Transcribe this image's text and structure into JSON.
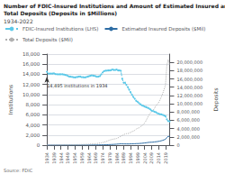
{
  "chart_data": {
    "type": "line",
    "title": "Number of FDIC-Insured Institutions and Amount of Estimated Insured and\nTotal Deposits (Deposits in $Millions)",
    "subtitle": "1934-2022",
    "source": "Source: FDIC",
    "ylabel": "Institutions",
    "y2label": "Deposits",
    "annotations": [
      {
        "text": "14,495 institutions in 1934",
        "x": 1934,
        "y": 14495
      }
    ],
    "legend": "upper left",
    "grid": true,
    "x": [
      1934,
      1935,
      1936,
      1937,
      1938,
      1939,
      1940,
      1941,
      1942,
      1943,
      1944,
      1945,
      1946,
      1947,
      1948,
      1949,
      1950,
      1951,
      1952,
      1953,
      1954,
      1955,
      1956,
      1957,
      1958,
      1959,
      1960,
      1961,
      1962,
      1963,
      1964,
      1965,
      1966,
      1967,
      1968,
      1969,
      1970,
      1971,
      1972,
      1973,
      1974,
      1975,
      1976,
      1977,
      1978,
      1979,
      1980,
      1981,
      1982,
      1983,
      1984,
      1985,
      1986,
      1987,
      1988,
      1989,
      1990,
      1991,
      1992,
      1993,
      1994,
      1995,
      1996,
      1997,
      1998,
      1999,
      2000,
      2001,
      2002,
      2003,
      2004,
      2005,
      2006,
      2007,
      2008,
      2009,
      2010,
      2011,
      2012,
      2013,
      2014,
      2015,
      2016,
      2017,
      2018,
      2019,
      2020,
      2021,
      2022
    ],
    "xlim": [
      1934,
      2022
    ],
    "xticks": [
      1934,
      1939,
      1944,
      1949,
      1954,
      1959,
      1964,
      1969,
      1974,
      1979,
      1984,
      1989,
      1994,
      1999,
      2004,
      2009,
      2014,
      2019
    ],
    "ylim": [
      0,
      18000
    ],
    "yticks": [
      0,
      {
        "value": 2000,
        "label": "2,000"
      },
      {
        "value": 4000,
        "label": "4,000"
      },
      {
        "value": 6000,
        "label": "6,000"
      },
      {
        "value": 8000,
        "label": "8,000"
      },
      {
        "value": 10000,
        "label": "10,000"
      },
      {
        "value": 12000,
        "label": "12,000"
      },
      {
        "value": 14000,
        "label": "14,000"
      },
      {
        "value": 16000,
        "label": "16,000"
      },
      {
        "value": 18000,
        "label": "18,000"
      }
    ],
    "y2lim": [
      0,
      22000000
    ],
    "y2ticks": [
      0,
      {
        "value": 2000000,
        "label": "2,000,000"
      },
      {
        "value": 4000000,
        "label": "4,000,000"
      },
      {
        "value": 6000000,
        "label": "6,000,000"
      },
      {
        "value": 8000000,
        "label": "8,000,000"
      },
      {
        "value": 10000000,
        "label": "10,000,000"
      },
      {
        "value": 12000000,
        "label": "12,000,000"
      },
      {
        "value": 14000000,
        "label": "14,000,000"
      },
      {
        "value": 16000000,
        "label": "16,000,000"
      },
      {
        "value": 18000000,
        "label": "18,000,000"
      },
      {
        "value": 20000000,
        "label": "20,000,000"
      }
    ],
    "series": [
      {
        "name": "FDIC-Insured Institutions (LHS)",
        "color": "#5bc8e8",
        "line_style": "dashed",
        "marker": "circle",
        "axis": "y",
        "values": [
          14495,
          14125,
          14156,
          14130,
          14163,
          14199,
          14069,
          14014,
          13989,
          13995,
          14001,
          14001,
          13976,
          13892,
          13814,
          13679,
          13547,
          13543,
          13484,
          13437,
          13386,
          13451,
          13491,
          13559,
          13545,
          13437,
          13442,
          13405,
          13434,
          13541,
          13611,
          13706,
          13773,
          13741,
          13693,
          13627,
          13511,
          13551,
          13664,
          14008,
          14384,
          14628,
          14729,
          14726,
          14760,
          14762,
          14835,
          14939,
          14860,
          14865,
          14939,
          14758,
          14778,
          14697,
          13122,
          12343,
          12343,
          11921,
          11462,
          10958,
          10450,
          9940,
          9528,
          9143,
          8774,
          8580,
          8315,
          8080,
          7887,
          7769,
          7630,
          7526,
          7401,
          7283,
          7085,
          6839,
          6739,
          6621,
          6519,
          6347,
          6225,
          6129,
          6072,
          5980,
          5843,
          5725,
          5117,
          4746,
          4716
        ]
      },
      {
        "name": "Estimated Insured Deposits ($Mil)",
        "color": "#2e6da4",
        "line_style": "solid",
        "marker": "none",
        "axis": "y2",
        "values": [
          2498,
          2831,
          3181,
          3428,
          3656,
          3881,
          4152,
          4652,
          5380,
          6358,
          7906,
          9754,
          10723,
          10814,
          10902,
          11108,
          11655,
          12508,
          13248,
          13790,
          14508,
          15576,
          16495,
          17327,
          18616,
          19551,
          20734,
          22339,
          24034,
          25983,
          28060,
          30819,
          33048,
          35822,
          40203,
          43050,
          46176,
          52316,
          60979,
          69753,
          75200,
          84621,
          96163,
          108100,
          124500,
          140200,
          154000,
          173200,
          189900,
          210600,
          234600,
          262100,
          291300,
          323600,
          304800,
          303100,
          293900,
          295700,
          286400,
          291100,
          313400,
          319300,
          325000,
          344600,
          370700,
          377600,
          388600,
          420500,
          449000,
          481200,
          529300,
          572400,
          613900,
          670800,
          688600,
          712000,
          726900,
          772300,
          818100,
          853700,
          912200,
          977000,
          1060000,
          1161000,
          1286000,
          1400000,
          1848000,
          2136000,
          2100000
        ]
      },
      {
        "name": "Total Deposits ($Mil)",
        "color": "#b0b0b0",
        "line_style": "dotted",
        "marker": "none",
        "axis": "y2",
        "values": [
          16428,
          19021,
          22029,
          23023,
          24049,
          25817,
          29812,
          36279,
          44847,
          56020,
          71948,
          84897,
          91396,
          90636,
          92004,
          91717,
          97282,
          106028,
          112823,
          117451,
          122856,
          132989,
          141393,
          146941,
          155735,
          160571,
          166959,
          177786,
          192978,
          212167,
          232698,
          259305,
          281028,
          302987,
          333774,
          352082,
          381783,
          440046,
          511945,
          572300,
          620500,
          735150,
          839200,
          938200,
          1095000,
          1223000,
          1324000,
          1408000,
          1481000,
          1524000,
          1614000,
          1768000,
          1956000,
          2143000,
          2337000,
          2523000,
          2677000,
          2769000,
          2803000,
          2896000,
          3101000,
          3273000,
          3388000,
          3592000,
          3869000,
          4079000,
          4173000,
          4447000,
          4669000,
          4888000,
          5321000,
          5861000,
          6550000,
          7156000,
          7697000,
          8002000,
          8353000,
          8811000,
          9432000,
          9826000,
          10226000,
          10879000,
          11612000,
          12437000,
          13460000,
          14476000,
          19306000,
          20673000,
          19393000
        ]
      }
    ]
  }
}
